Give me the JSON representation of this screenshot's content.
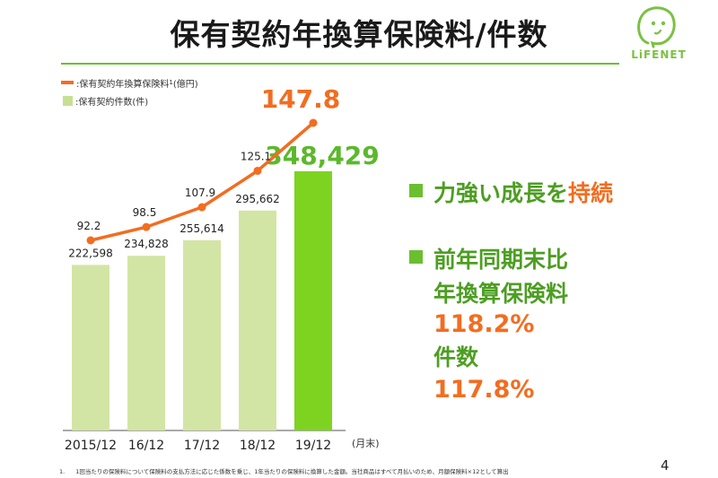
{
  "title": "保有契約年換算保険料/件数",
  "logo": {
    "text": "LiFENET"
  },
  "legend": {
    "line_label": ":保有契約年換算保険料",
    "line_superscript": "1",
    "line_unit": "(億円)",
    "bar_label": ":保有契約件数(件)"
  },
  "x_unit": "(月末)",
  "bullets": {
    "b1_part1": "力強い成長を",
    "b1_part2": "持続",
    "b2_line1": "前年同期末比",
    "b2_line2": "年換算保険料",
    "b2_value1": "118.2%",
    "b2_line3": "件数",
    "b2_value2": "117.8%"
  },
  "footnote_marker": "1.",
  "footnote": "1回当たりの保険料について保険料の支払方法に応じた係数を乗じ、1年当たりの保険料に換算した金額。当社商品はすべて月払いのため、月額保険料×12として算出",
  "page_number": "4",
  "colors": {
    "accent_green": "#6bbf2f",
    "line_orange": "#f26d21",
    "bar_light": "#d3e5a4",
    "bar_highlight": "#7ed321"
  },
  "chart_data": {
    "type": "bar",
    "categories": [
      "2015/12",
      "16/12",
      "17/12",
      "18/12",
      "19/12"
    ],
    "series": [
      {
        "name": "保有契約件数(件)",
        "kind": "bar",
        "values": [
          222598,
          234828,
          255614,
          295662,
          348429
        ],
        "labels": [
          "222,598",
          "234,828",
          "255,614",
          "295,662",
          "348,429"
        ]
      },
      {
        "name": "保有契約年換算保険料(億円)",
        "kind": "line",
        "values": [
          92.2,
          98.5,
          107.9,
          125.1,
          147.8
        ],
        "labels": [
          "92.2",
          "98.5",
          "107.9",
          "125.1",
          "147.8"
        ]
      }
    ],
    "highlight_index": 4
  }
}
